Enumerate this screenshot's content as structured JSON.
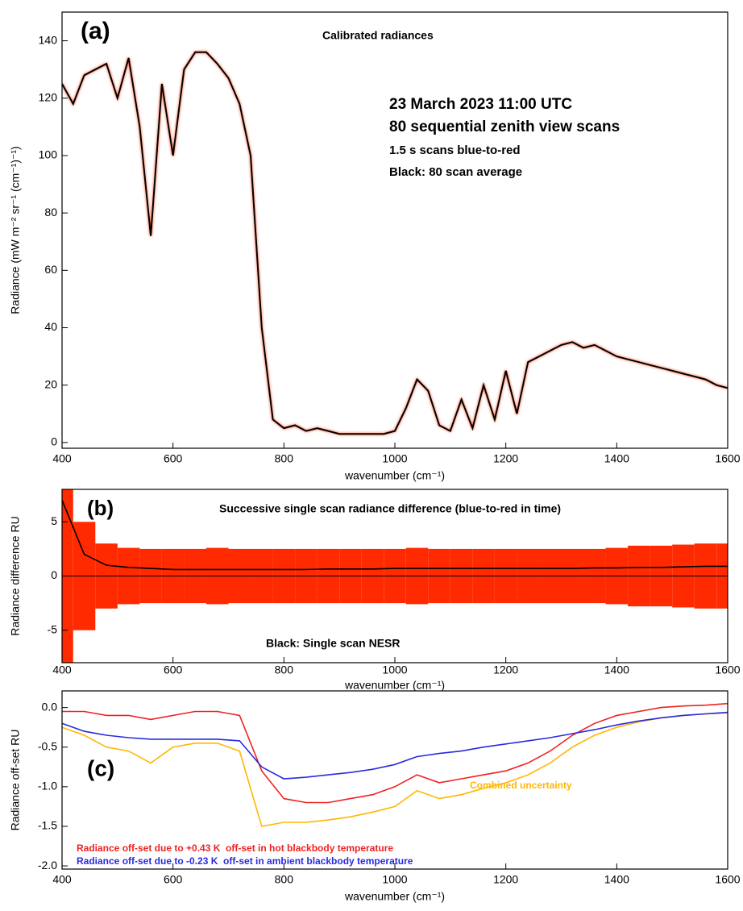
{
  "chart_data": [
    {
      "type": "line",
      "panel": "(a)",
      "title": "Calibrated radiances",
      "annotations": [
        "23 March 2023 11:00 UTC",
        "80 sequential zenith view scans",
        "1.5 s scans blue-to-red"
      ],
      "xlabel": "wavenumber (cm⁻¹)",
      "ylabel": "Radiance (mW m⁻² sr⁻¹ (cm⁻¹)⁻¹)",
      "x": [
        400,
        420,
        440,
        460,
        480,
        500,
        520,
        540,
        560,
        580,
        600,
        620,
        640,
        660,
        680,
        700,
        720,
        740,
        760,
        780,
        800,
        820,
        840,
        860,
        880,
        900,
        920,
        940,
        960,
        980,
        1000,
        1020,
        1040,
        1060,
        1080,
        1100,
        1120,
        1140,
        1160,
        1180,
        1200,
        1220,
        1240,
        1260,
        1280,
        1300,
        1320,
        1340,
        1360,
        1380,
        1400,
        1420,
        1440,
        1460,
        1480,
        1500,
        1520,
        1540,
        1560,
        1580,
        1600
      ],
      "series": [
        {
          "name": "Black: 80 scan average",
          "color": "#000000",
          "values": [
            125,
            118,
            128,
            130,
            132,
            120,
            134,
            110,
            72,
            125,
            100,
            130,
            136,
            136,
            132,
            127,
            118,
            100,
            40,
            8,
            5,
            6,
            4,
            5,
            4,
            3,
            3,
            3,
            3,
            3,
            4,
            12,
            22,
            18,
            6,
            4,
            15,
            5,
            20,
            8,
            25,
            10,
            28,
            30,
            32,
            34,
            35,
            33,
            34,
            32,
            30,
            29,
            28,
            27,
            26,
            25,
            24,
            23,
            22,
            20,
            19
          ]
        }
      ],
      "xlim": [
        400,
        1600
      ],
      "ylim": [
        -2,
        150
      ],
      "xticks": [
        400,
        600,
        800,
        1000,
        1200,
        1400,
        1600
      ],
      "yticks": [
        0,
        20,
        40,
        60,
        80,
        100,
        120,
        140
      ]
    },
    {
      "type": "bar-line",
      "panel": "(b)",
      "title": "Successive single scan radiance difference (blue-to-red in time)",
      "xlabel": "wavenumber (cm⁻¹)",
      "ylabel": "Radiance difference RU",
      "x": [
        400,
        440,
        480,
        520,
        560,
        600,
        640,
        680,
        720,
        760,
        800,
        840,
        880,
        920,
        960,
        1000,
        1040,
        1080,
        1120,
        1160,
        1200,
        1240,
        1280,
        1320,
        1360,
        1400,
        1440,
        1480,
        1520,
        1560,
        1600
      ],
      "series": [
        {
          "color": "#ff2a00",
          "values": [
            8,
            5,
            3,
            2.6,
            2.5,
            2.5,
            2.5,
            2.6,
            2.5,
            2.5,
            2.5,
            2.5,
            2.5,
            2.5,
            2.5,
            2.5,
            2.6,
            2.5,
            2.5,
            2.5,
            2.5,
            2.5,
            2.5,
            2.5,
            2.5,
            2.6,
            2.8,
            2.8,
            2.9,
            3,
            3
          ]
        },
        {
          "color": "#ff2a00",
          "values": [
            -8,
            -5,
            -3,
            -2.6,
            -2.5,
            -2.5,
            -2.5,
            -2.6,
            -2.5,
            -2.5,
            -2.5,
            -2.5,
            -2.5,
            -2.5,
            -2.5,
            -2.5,
            -2.6,
            -2.5,
            -2.5,
            -2.5,
            -2.5,
            -2.5,
            -2.5,
            -2.5,
            -2.5,
            -2.6,
            -2.8,
            -2.8,
            -2.9,
            -3,
            -3
          ]
        },
        {
          "name": "Black: Single scan NESR",
          "color": "#000000",
          "values": [
            7,
            2,
            1,
            0.8,
            0.7,
            0.6,
            0.6,
            0.6,
            0.6,
            0.6,
            0.6,
            0.6,
            0.65,
            0.65,
            0.65,
            0.7,
            0.7,
            0.7,
            0.7,
            0.7,
            0.7,
            0.7,
            0.7,
            0.7,
            0.75,
            0.75,
            0.8,
            0.8,
            0.85,
            0.9,
            0.9
          ]
        }
      ],
      "xlim": [
        400,
        1600
      ],
      "ylim": [
        -8,
        8
      ],
      "xticks": [
        400,
        600,
        800,
        1000,
        1200,
        1400,
        1600
      ],
      "yticks": [
        -5,
        0,
        5
      ]
    },
    {
      "type": "line",
      "panel": "(c)",
      "xlabel": "wavenumber (cm⁻¹)",
      "ylabel": "Radiance off-set RU",
      "x": [
        400,
        440,
        480,
        520,
        560,
        600,
        640,
        680,
        720,
        760,
        800,
        840,
        880,
        920,
        960,
        1000,
        1040,
        1080,
        1120,
        1160,
        1200,
        1240,
        1280,
        1320,
        1360,
        1400,
        1440,
        1480,
        1520,
        1560,
        1600
      ],
      "series": [
        {
          "name": "Combined uncertainty",
          "color": "#ffb700",
          "values": [
            -0.25,
            -0.35,
            -0.5,
            -0.55,
            -0.7,
            -0.5,
            -0.45,
            -0.45,
            -0.55,
            -1.5,
            -1.45,
            -1.45,
            -1.42,
            -1.38,
            -1.32,
            -1.25,
            -1.05,
            -1.15,
            -1.1,
            -1.02,
            -0.95,
            -0.85,
            -0.7,
            -0.5,
            -0.35,
            -0.25,
            -0.18,
            -0.13,
            -0.1,
            -0.08,
            -0.07
          ]
        },
        {
          "name": "Radiance off-set due to +0.43 K  off-set in hot blackbody temperature",
          "color": "#ee2222",
          "values": [
            -0.05,
            -0.05,
            -0.1,
            -0.1,
            -0.15,
            -0.1,
            -0.05,
            -0.05,
            -0.1,
            -0.8,
            -1.15,
            -1.2,
            -1.2,
            -1.15,
            -1.1,
            -1.0,
            -0.85,
            -0.95,
            -0.9,
            -0.85,
            -0.8,
            -0.7,
            -0.55,
            -0.35,
            -0.2,
            -0.1,
            -0.05,
            0,
            0.02,
            0.03,
            0.05
          ]
        },
        {
          "name": "Radiance off-set due to -0.23 K  off-set in ambient blackbody temperature",
          "color": "#2a2ae0",
          "values": [
            -0.2,
            -0.3,
            -0.35,
            -0.38,
            -0.4,
            -0.4,
            -0.4,
            -0.4,
            -0.42,
            -0.75,
            -0.9,
            -0.88,
            -0.85,
            -0.82,
            -0.78,
            -0.72,
            -0.62,
            -0.58,
            -0.55,
            -0.5,
            -0.46,
            -0.42,
            -0.38,
            -0.33,
            -0.28,
            -0.22,
            -0.17,
            -0.13,
            -0.1,
            -0.08,
            -0.06
          ]
        }
      ],
      "xlim": [
        400,
        1600
      ],
      "ylim": [
        -2.04,
        0.21
      ],
      "xticks": [
        400,
        600,
        800,
        1000,
        1200,
        1400,
        1600
      ],
      "yticks": [
        {
          "value": 0,
          "label": "0.0"
        },
        -0.5,
        {
          "value": -1,
          "label": "-1.0"
        },
        -1.5,
        {
          "value": -2,
          "label": "-2.0"
        }
      ]
    }
  ]
}
